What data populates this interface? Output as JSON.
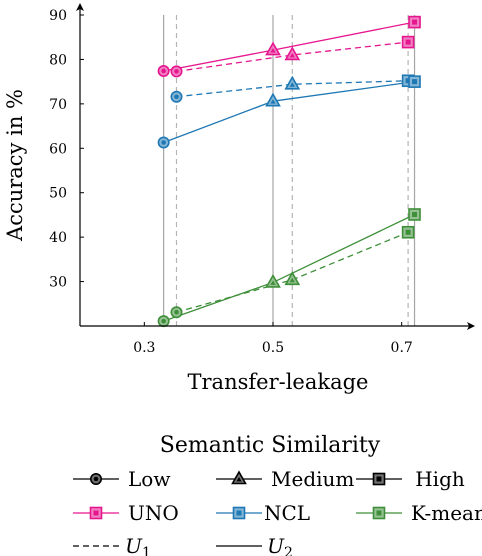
{
  "chart_data": {
    "type": "line",
    "xlabel": "Transfer-leakage",
    "ylabel": "Accuracy in %",
    "xlim": [
      0.2,
      0.8
    ],
    "ylim": [
      20,
      90
    ],
    "xticks": [
      "0.3",
      "0.5",
      "0.7"
    ],
    "yticks": [
      "30",
      "40",
      "50",
      "60",
      "70",
      "80",
      "90"
    ],
    "grid": false,
    "vlines": [
      {
        "x": 0.33,
        "style": "solid"
      },
      {
        "x": 0.35,
        "style": "dashed"
      },
      {
        "x": 0.5,
        "style": "solid"
      },
      {
        "x": 0.53,
        "style": "dashed"
      },
      {
        "x": 0.71,
        "style": "dashed"
      },
      {
        "x": 0.72,
        "style": "solid"
      }
    ],
    "series": [
      {
        "name": "UNO",
        "variant": "U1",
        "color": "#e6168f",
        "dashed": true,
        "points": [
          {
            "x": 0.35,
            "y": 77.3,
            "marker": "low"
          },
          {
            "x": 0.53,
            "y": 81.0,
            "marker": "medium"
          },
          {
            "x": 0.71,
            "y": 83.9,
            "marker": "high"
          }
        ]
      },
      {
        "name": "UNO",
        "variant": "U2",
        "color": "#e6168f",
        "dashed": false,
        "points": [
          {
            "x": 0.33,
            "y": 77.4,
            "marker": "low"
          },
          {
            "x": 0.5,
            "y": 82.1,
            "marker": "medium"
          },
          {
            "x": 0.72,
            "y": 88.4,
            "marker": "high"
          }
        ]
      },
      {
        "name": "NCL",
        "variant": "U1",
        "color": "#1e78b4",
        "dashed": true,
        "points": [
          {
            "x": 0.35,
            "y": 71.6,
            "marker": "low"
          },
          {
            "x": 0.53,
            "y": 74.4,
            "marker": "medium"
          },
          {
            "x": 0.71,
            "y": 75.2,
            "marker": "high"
          }
        ]
      },
      {
        "name": "NCL",
        "variant": "U2",
        "color": "#1e78b4",
        "dashed": false,
        "points": [
          {
            "x": 0.33,
            "y": 61.3,
            "marker": "low"
          },
          {
            "x": 0.5,
            "y": 70.6,
            "marker": "medium"
          },
          {
            "x": 0.72,
            "y": 75.0,
            "marker": "high"
          }
        ]
      },
      {
        "name": "K-means",
        "variant": "U1",
        "color": "#3f8f3a",
        "dashed": true,
        "points": [
          {
            "x": 0.35,
            "y": 23.1,
            "marker": "low"
          },
          {
            "x": 0.53,
            "y": 30.4,
            "marker": "medium"
          },
          {
            "x": 0.71,
            "y": 41.1,
            "marker": "high"
          }
        ]
      },
      {
        "name": "K-means",
        "variant": "U2",
        "color": "#3f8f3a",
        "dashed": false,
        "points": [
          {
            "x": 0.33,
            "y": 21.1,
            "marker": "low"
          },
          {
            "x": 0.5,
            "y": 29.8,
            "marker": "medium"
          },
          {
            "x": 0.72,
            "y": 45.1,
            "marker": "high"
          }
        ]
      }
    ],
    "legend": {
      "title": "Semantic Similarity",
      "markers": [
        {
          "kind": "low",
          "label": "Low"
        },
        {
          "kind": "medium",
          "label": "Medium"
        },
        {
          "kind": "high",
          "label": "High"
        }
      ],
      "methods": [
        {
          "label": "UNO",
          "color": "#e6168f"
        },
        {
          "label": "NCL",
          "color": "#1e78b4"
        },
        {
          "label": "K-means",
          "color": "#3f8f3a"
        }
      ],
      "lines": [
        {
          "label": "U",
          "sub": "1",
          "style": "dashed"
        },
        {
          "label": "U",
          "sub": "2",
          "style": "solid"
        }
      ]
    }
  }
}
